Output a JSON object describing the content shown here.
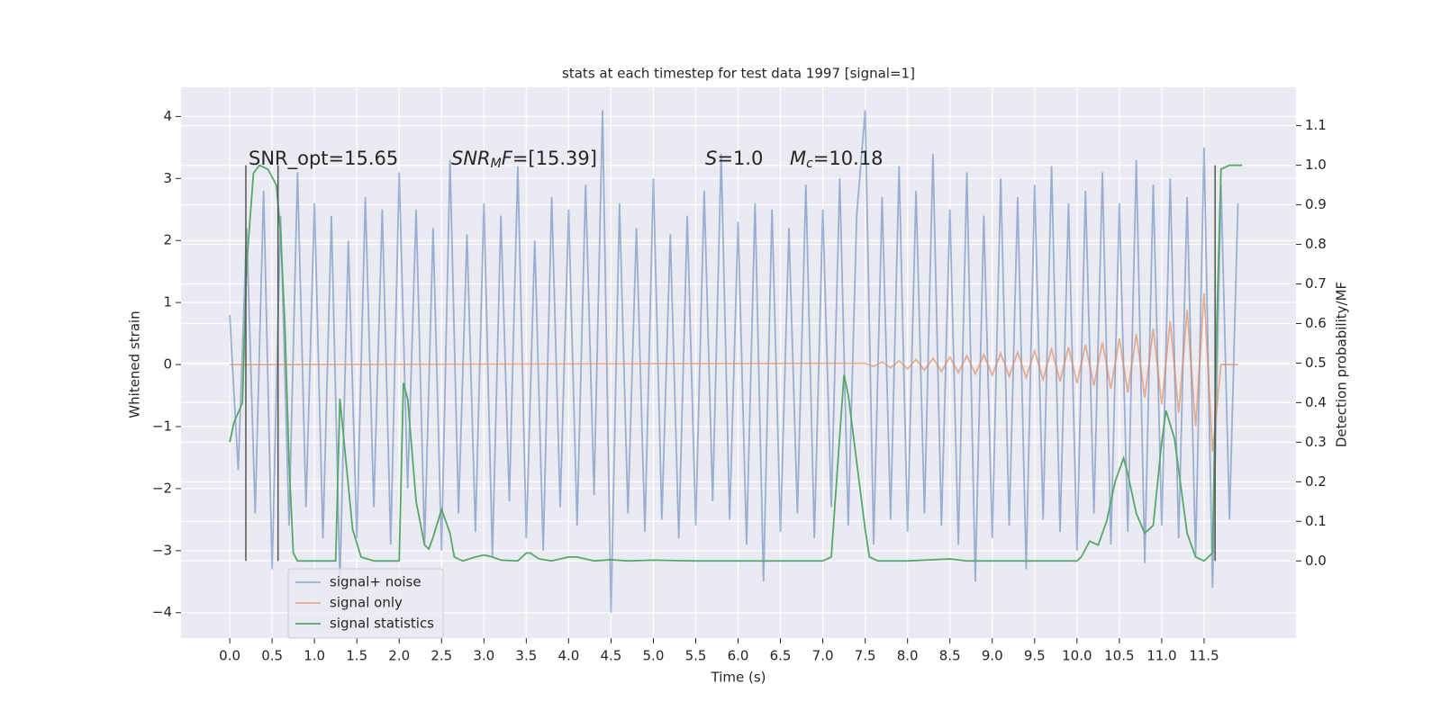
{
  "chart_data": {
    "type": "line",
    "title": "stats at each timestep for test data 1997 [signal=1]",
    "xlabel": "Time (s)",
    "ylabel": "Whitened strain",
    "y2label": "Detection probability/MF",
    "xlim": [
      -0.575,
      12.585
    ],
    "ylim": [
      -4.41,
      4.47
    ],
    "y2lim": [
      -0.195,
      1.197
    ],
    "xticks": [
      {
        "value": 0,
        "label": "0.0"
      },
      0.5,
      {
        "value": 1,
        "label": "1.0"
      },
      1.5,
      {
        "value": 2,
        "label": "2.0"
      },
      2.5,
      {
        "value": 3,
        "label": "3.0"
      },
      3.5,
      {
        "value": 4,
        "label": "4.0"
      },
      4.5,
      {
        "value": 5,
        "label": "5.0"
      },
      5.5,
      {
        "value": 6,
        "label": "6.0"
      },
      6.5,
      {
        "value": 7,
        "label": "7.0"
      },
      7.5,
      {
        "value": 8,
        "label": "8.0"
      },
      8.5,
      {
        "value": 9,
        "label": "9.0"
      },
      9.5,
      {
        "value": 10,
        "label": "10.0"
      },
      10.5,
      {
        "value": 11,
        "label": "11.0"
      },
      11.5
    ],
    "yticks": [
      {
        "value": -4,
        "label": "−4"
      },
      {
        "value": -3,
        "label": "−3"
      },
      {
        "value": -2,
        "label": "−2"
      },
      {
        "value": -1,
        "label": "−1"
      },
      0,
      1,
      2,
      3,
      4
    ],
    "y2ticks": [
      {
        "value": 0,
        "label": "0.0"
      },
      0.1,
      0.2,
      0.3,
      0.4,
      0.5,
      0.6,
      0.7,
      0.8,
      0.9,
      {
        "value": 1,
        "label": "1.0"
      },
      1.1
    ],
    "grid": true,
    "legend": "lower left",
    "series": [
      {
        "name": "signal+ noise",
        "color": "#4c72b0",
        "opacity": 0.5,
        "x": [
          0,
          0.1,
          0.2,
          0.3,
          0.4,
          0.5,
          0.6,
          0.7,
          0.8,
          0.9,
          1,
          1.1,
          1.2,
          1.3,
          1.4,
          1.5,
          1.6,
          1.7,
          1.8,
          1.9,
          2,
          2.1,
          2.2,
          2.3,
          2.4,
          2.5,
          2.6,
          2.7,
          2.8,
          2.9,
          3,
          3.1,
          3.2,
          3.3,
          3.4,
          3.5,
          3.6,
          3.7,
          3.8,
          3.9,
          4,
          4.1,
          4.2,
          4.3,
          4.4,
          4.5,
          4.6,
          4.7,
          4.8,
          4.9,
          5,
          5.1,
          5.2,
          5.3,
          5.4,
          5.5,
          5.6,
          5.7,
          5.8,
          5.9,
          6,
          6.1,
          6.2,
          6.3,
          6.4,
          6.5,
          6.6,
          6.7,
          6.8,
          6.9,
          7,
          7.1,
          7.2,
          7.3,
          7.4,
          7.5,
          7.6,
          7.7,
          7.8,
          7.9,
          8,
          8.1,
          8.2,
          8.3,
          8.4,
          8.5,
          8.6,
          8.7,
          8.8,
          8.9,
          9,
          9.1,
          9.2,
          9.3,
          9.4,
          9.5,
          9.6,
          9.7,
          9.8,
          9.9,
          10,
          10.1,
          10.2,
          10.3,
          10.4,
          10.5,
          10.6,
          10.7,
          10.8,
          10.9,
          11,
          11.1,
          11.2,
          11.3,
          11.4,
          11.5,
          11.6,
          11.7,
          11.8,
          11.9
        ],
        "values": [
          0.8,
          -1.7,
          2.2,
          -2.4,
          2.8,
          -3.3,
          2.4,
          -2.6,
          3.1,
          -2.3,
          2.6,
          -2.8,
          2.4,
          -3.5,
          2.0,
          -2.8,
          2.7,
          -2.3,
          2.5,
          -2.9,
          3.1,
          -2.0,
          2.5,
          -2.9,
          2.2,
          -3.0,
          3.3,
          -2.4,
          2.1,
          -2.7,
          2.6,
          -3.1,
          2.4,
          -2.2,
          3.2,
          -2.8,
          2.0,
          -3.0,
          2.7,
          -2.3,
          2.5,
          -2.6,
          2.9,
          -2.1,
          4.1,
          -4.0,
          2.6,
          -2.4,
          2.2,
          -2.7,
          3.0,
          -2.5,
          2.1,
          -2.8,
          2.4,
          -2.6,
          2.8,
          -2.2,
          3.4,
          -2.5,
          2.3,
          -2.9,
          2.6,
          -3.5,
          2.5,
          -2.7,
          2.2,
          -2.4,
          2.9,
          -2.8,
          2.5,
          -2.3,
          3.0,
          -2.6,
          2.4,
          4.1,
          -2.9,
          2.7,
          -2.5,
          3.2,
          -2.7,
          2.8,
          -2.4,
          3.4,
          -2.6,
          2.5,
          -2.9,
          3.1,
          -3.5,
          2.4,
          -2.8,
          3.0,
          -2.6,
          2.7,
          -3.3,
          2.9,
          -2.5,
          3.2,
          -2.7,
          2.6,
          -3.0,
          2.8,
          -2.4,
          3.1,
          -2.9,
          2.6,
          -2.7,
          3.3,
          -3.2,
          2.9,
          -2.6,
          3.0,
          -2.8,
          2.7,
          -3.1,
          3.5,
          -3.6,
          2.9,
          -2.5,
          2.6
        ]
      },
      {
        "name": "signal only",
        "color": "#dd8452",
        "opacity": 0.6,
        "x": [
          0,
          7.5,
          7.6,
          7.7,
          7.8,
          7.9,
          8,
          8.1,
          8.2,
          8.3,
          8.4,
          8.5,
          8.6,
          8.7,
          8.8,
          8.9,
          9,
          9.1,
          9.2,
          9.3,
          9.4,
          9.5,
          9.6,
          9.7,
          9.8,
          9.9,
          10,
          10.1,
          10.2,
          10.3,
          10.4,
          10.5,
          10.6,
          10.7,
          10.8,
          10.9,
          11,
          11.1,
          11.2,
          11.3,
          11.4,
          11.5,
          11.6,
          11.7,
          11.8,
          11.9
        ],
        "values": [
          0,
          0.02,
          -0.03,
          0.04,
          -0.05,
          0.06,
          -0.07,
          0.08,
          -0.09,
          0.1,
          -0.11,
          0.12,
          -0.13,
          0.14,
          -0.15,
          0.16,
          -0.17,
          0.18,
          -0.19,
          0.2,
          -0.21,
          0.22,
          -0.24,
          0.25,
          -0.27,
          0.28,
          -0.3,
          0.32,
          -0.34,
          0.36,
          -0.39,
          0.42,
          -0.45,
          0.49,
          -0.53,
          0.58,
          -0.64,
          0.7,
          -0.78,
          0.88,
          -1.0,
          1.15,
          -1.4,
          0,
          0,
          0
        ]
      },
      {
        "name": "signal statistics",
        "color": "#55a868",
        "opacity": 1,
        "axis": "y2",
        "x": [
          0,
          0.05,
          0.15,
          0.2,
          0.28,
          0.35,
          0.45,
          0.55,
          0.6,
          0.65,
          0.7,
          0.75,
          0.8,
          1.25,
          1.3,
          1.35,
          1.45,
          1.55,
          1.7,
          2,
          2.05,
          2.1,
          2.2,
          2.3,
          2.35,
          2.4,
          2.5,
          2.6,
          2.65,
          2.75,
          2.9,
          3,
          3.1,
          3.2,
          3.4,
          3.5,
          3.55,
          3.65,
          3.8,
          4,
          4.1,
          4.3,
          4.5,
          4.7,
          5,
          5.5,
          6.5,
          7,
          7.1,
          7.25,
          7.3,
          7.4,
          7.5,
          7.55,
          7.65,
          8,
          8.5,
          8.7,
          10,
          10.05,
          10.15,
          10.25,
          10.35,
          10.45,
          10.55,
          10.6,
          10.7,
          10.8,
          10.9,
          11,
          11.05,
          11.15,
          11.3,
          11.4,
          11.5,
          11.6,
          11.65,
          11.7,
          11.8,
          11.95
        ],
        "values": [
          0.3,
          0.35,
          0.4,
          0.75,
          0.98,
          1.0,
          0.99,
          0.95,
          0.83,
          0.6,
          0.25,
          0.02,
          0,
          0,
          0.41,
          0.3,
          0.08,
          0.01,
          0,
          0,
          0.45,
          0.41,
          0.15,
          0.04,
          0.03,
          0.06,
          0.13,
          0.07,
          0.01,
          0,
          0.01,
          0.015,
          0.01,
          0.002,
          0,
          0.02,
          0.02,
          0.005,
          0,
          0.01,
          0.01,
          0,
          0.003,
          0,
          0.002,
          0,
          0,
          0,
          0.01,
          0.47,
          0.42,
          0.25,
          0.08,
          0.01,
          0,
          0,
          0.005,
          0,
          0,
          0.01,
          0.05,
          0.04,
          0.1,
          0.2,
          0.26,
          0.22,
          0.12,
          0.07,
          0.09,
          0.3,
          0.38,
          0.31,
          0.07,
          0.01,
          0,
          0.02,
          0.6,
          0.99,
          1.0,
          1.0
        ]
      }
    ],
    "vlines": {
      "x": [
        0.19,
        0.57,
        11.63
      ],
      "ymin": 0,
      "ymax": 1,
      "axis": "y2",
      "color": "#555555"
    },
    "annotations": [
      [
        {
          "text": "SNR_opt=15.65",
          "italic": false,
          "sub": false
        }
      ],
      [
        {
          "text": "SNR",
          "italic": true,
          "sub": false
        },
        {
          "text": "M",
          "italic": true,
          "sub": true
        },
        {
          "text": "F",
          "italic": true,
          "sub": false
        },
        {
          "text": "=[15.39]",
          "italic": false,
          "sub": false
        }
      ],
      [
        {
          "text": "S",
          "italic": true,
          "sub": false
        },
        {
          "text": "=1.0",
          "italic": false,
          "sub": false
        }
      ],
      [
        {
          "text": "M",
          "italic": true,
          "sub": false
        },
        {
          "text": "c",
          "italic": true,
          "sub": true
        },
        {
          "text": "=10.18",
          "italic": false,
          "sub": false
        }
      ]
    ]
  }
}
